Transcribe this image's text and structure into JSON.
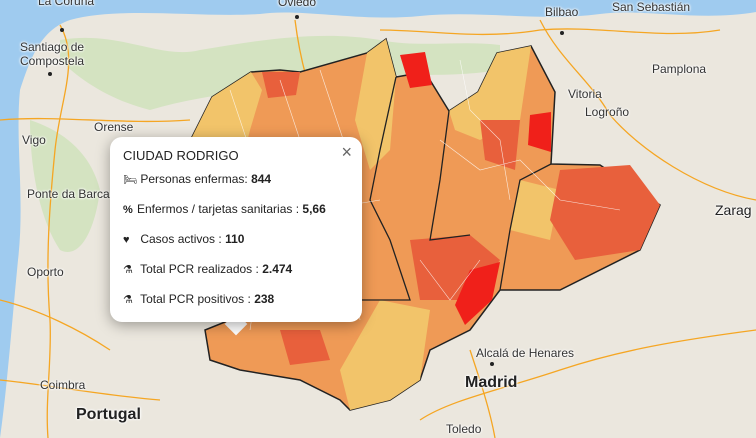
{
  "map": {
    "colors": {
      "sea": "#9fcbef",
      "land": "#ebe7de",
      "forest": "#d4e3c1",
      "road": "#f5a623",
      "low": "#f2c46a",
      "mid": "#ef9a56",
      "high": "#e8603c",
      "max": "#f0201a"
    },
    "cities": [
      {
        "name": "La Coruña"
      },
      {
        "name": "Oviedo"
      },
      {
        "name": "Bilbao"
      },
      {
        "name": "San Sebastián"
      },
      {
        "name": "Santiago de"
      },
      {
        "name": "Compostela"
      },
      {
        "name": "Vitoria"
      },
      {
        "name": "Pamplona"
      },
      {
        "name": "Orense"
      },
      {
        "name": "Logroño"
      },
      {
        "name": "Vigo"
      },
      {
        "name": "Ponte da Barca"
      },
      {
        "name": "Zarag"
      },
      {
        "name": "Oporto"
      },
      {
        "name": "Alcalá de Henares"
      },
      {
        "name": "Madrid"
      },
      {
        "name": "Coimbra"
      },
      {
        "name": "Portugal"
      },
      {
        "name": "Toledo"
      }
    ]
  },
  "popup": {
    "title": "CIUDAD RODRIGO",
    "close": "×",
    "rows": [
      {
        "icon": "bed-icon",
        "label": "Personas enfermas:",
        "value": "844"
      },
      {
        "icon": "percent-icon",
        "label": "Enfermos / tarjetas sanitarias :",
        "value": "5,66"
      },
      {
        "icon": "heartbeat-icon",
        "label": "Casos activos :",
        "value": "110"
      },
      {
        "icon": "flask-icon",
        "label": "Total PCR realizados :",
        "value": "2.474"
      },
      {
        "icon": "flask-icon",
        "label": "Total PCR positivos :",
        "value": "238"
      }
    ]
  }
}
